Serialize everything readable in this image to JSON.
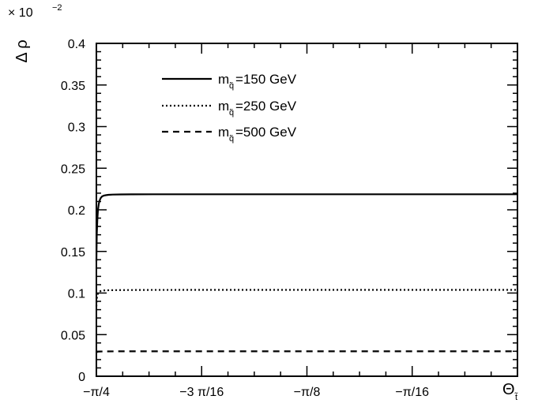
{
  "chart_data": {
    "type": "line",
    "title": "",
    "ylabel": "Δ ρ",
    "xlabel": "Θ",
    "xlabel_sub": "t̃",
    "y_multiplier": "× 10",
    "y_multiplier_exp": "−2",
    "xlim": [
      -0.785398,
      0.0
    ],
    "ylim": [
      0.0,
      0.4
    ],
    "x_ticks": [
      {
        "value": -0.785398,
        "label": "−π/4"
      },
      {
        "value": -0.589049,
        "label": "−3 π/16"
      },
      {
        "value": -0.392699,
        "label": "−π/8"
      },
      {
        "value": -0.19635,
        "label": "−π/16"
      }
    ],
    "y_ticks": [
      {
        "value": 0.0,
        "label": "0"
      },
      {
        "value": 0.05,
        "label": "0.05"
      },
      {
        "value": 0.1,
        "label": "0.1"
      },
      {
        "value": 0.15,
        "label": "0.15"
      },
      {
        "value": 0.2,
        "label": "0.2"
      },
      {
        "value": 0.25,
        "label": "0.25"
      },
      {
        "value": 0.3,
        "label": "0.3"
      },
      {
        "value": 0.35,
        "label": "0.35"
      },
      {
        "value": 0.4,
        "label": "0.4"
      }
    ],
    "legend_position": "top-left",
    "series": [
      {
        "name_prefix": "m",
        "name_sub": "q̃",
        "name_suffix": "=150 GeV",
        "style": "solid",
        "x": [
          -0.7854,
          -0.7846,
          -0.7837,
          -0.7825,
          -0.781,
          -0.7795,
          -0.7775,
          -0.775,
          -0.772,
          -0.768,
          -0.763,
          -0.755,
          -0.74,
          -0.72,
          -0.68,
          -0.6,
          -0.5,
          -0.4,
          -0.3,
          -0.2,
          -0.1,
          0.0
        ],
        "y": [
          0.138,
          0.17,
          0.188,
          0.2,
          0.207,
          0.211,
          0.214,
          0.216,
          0.217,
          0.2175,
          0.218,
          0.2183,
          0.2185,
          0.2186,
          0.2187,
          0.2187,
          0.2187,
          0.2187,
          0.2187,
          0.2187,
          0.2187,
          0.2187
        ]
      },
      {
        "name_prefix": "m",
        "name_sub": "q̃",
        "name_suffix": "=250 GeV",
        "style": "dotted",
        "x": [
          -0.7854,
          -0.7846,
          -0.7835,
          -0.782,
          -0.78,
          -0.777,
          -0.773,
          -0.765,
          -0.75,
          -0.7,
          -0.6,
          -0.5,
          -0.4,
          -0.3,
          -0.2,
          -0.1,
          0.0
        ],
        "y": [
          0.084,
          0.093,
          0.098,
          0.1,
          0.1015,
          0.1025,
          0.103,
          0.1033,
          0.1035,
          0.1037,
          0.1038,
          0.1038,
          0.1038,
          0.1038,
          0.1038,
          0.1038,
          0.1038
        ]
      },
      {
        "name_prefix": "m",
        "name_sub": "q̃",
        "name_suffix": "=500 GeV",
        "style": "dashed",
        "x": [
          -0.7854,
          -0.784,
          -0.782,
          -0.778,
          -0.77,
          -0.75,
          -0.7,
          -0.6,
          -0.4,
          -0.2,
          0.0
        ],
        "y": [
          0.0285,
          0.0292,
          0.0296,
          0.0298,
          0.0299,
          0.03,
          0.03,
          0.03,
          0.03,
          0.03,
          0.03
        ]
      }
    ]
  }
}
